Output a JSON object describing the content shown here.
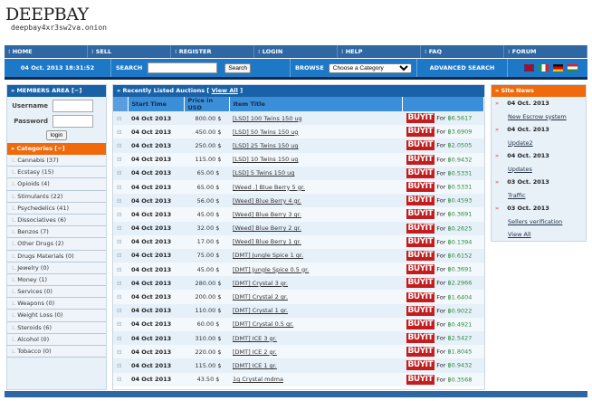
{
  "header": {
    "logo": "DEEPBAY",
    "url": "deepbay4xr3sw2va.onion"
  },
  "nav": [
    "HOME",
    "SELL",
    "REGISTER",
    "LOGIN",
    "HELP",
    "FAQ",
    "FORUM"
  ],
  "toolbar": {
    "datetime": "04 Oct. 2013 18:31:52",
    "search_label": "SEARCH",
    "search_value": "",
    "search_button": "Search",
    "browse_label": "BROWSE",
    "category_select": "Choose a Category",
    "advanced": "ADVANCED SEARCH",
    "flags": [
      "uk",
      "italy",
      "germany",
      "hungary"
    ]
  },
  "members": {
    "title": "» MEMBERS AREA [−]",
    "username": "Username",
    "password": "Password",
    "login": "login"
  },
  "categories": {
    "title": "» Categories [−]",
    "items": [
      "Cannabis (37)",
      "Ecstasy (15)",
      "Opioids (4)",
      "Stimulants (22)",
      "Psychedelics (41)",
      "Dissociatives (6)",
      "Benzos (7)",
      "Other Drugs (2)",
      "Drugs Materials (0)",
      "Jewelry (0)",
      "Money (1)",
      "Services (0)",
      "Weapons (0)",
      "Weight Loss (0)",
      "Steroids (6)",
      "Alcohol (0)",
      "Tobacco (0)"
    ]
  },
  "auctions": {
    "title": "» Recently Listed Auctions [",
    "view_all": "View All",
    "title_end": "]",
    "columns": [
      "",
      "Start Time",
      "Price in USD",
      "Item Title",
      ""
    ],
    "buy_label": "BUYIT",
    "for_label": "For",
    "rows": [
      [
        "04 Oct 2013",
        "800.00 $",
        "[LSD] 100 Twins 150 ug",
        "฿6.5617"
      ],
      [
        "04 Oct 2013",
        "450.00 $",
        "[LSD] 50 Twins 150 ug",
        "฿3.6909"
      ],
      [
        "04 Oct 2013",
        "250.00 $",
        "[LSD] 25 Twins 150 ug",
        "฿2.0505"
      ],
      [
        "04 Oct 2013",
        "115.00 $",
        "[LSD] 10 Twins 150 ug",
        "฿0.9432"
      ],
      [
        "04 Oct 2013",
        "65.00 $",
        "[LSD] 5 Twins 150 ug",
        "฿0.5331"
      ],
      [
        "04 Oct 2013",
        "65.00 $",
        "[Weed .] Blue Berry 5 gr.",
        "฿0.5331"
      ],
      [
        "04 Oct 2013",
        "56.00 $",
        "[Weed] Blue Berry 4 gr.",
        "฿0.4593"
      ],
      [
        "04 Oct 2013",
        "45.00 $",
        "[Weed] Blue Berry 3 gr.",
        "฿0.3691"
      ],
      [
        "04 Oct 2013",
        "32.00 $",
        "[Weed] Blue Berry 2 gr.",
        "฿0.2625"
      ],
      [
        "04 Oct 2013",
        "17.00 $",
        "[Weed] Blue Berry 1 gr.",
        "฿0.1394"
      ],
      [
        "04 Oct 2013",
        "75.00 $",
        "[DMT] Jungle Spice 1 gr.",
        "฿0.6152"
      ],
      [
        "04 Oct 2013",
        "45.00 $",
        "[DMT] Jungle Spice 0.5 gr.",
        "฿0.3691"
      ],
      [
        "04 Oct 2013",
        "280.00 $",
        "[DMT] Crystal 3 gr.",
        "฿2.2966"
      ],
      [
        "04 Oct 2013",
        "200.00 $",
        "[DMT] Crystal 2 gr.",
        "฿1.6404"
      ],
      [
        "04 Oct 2013",
        "110.00 $",
        "[DMT] Crystal 1 gr.",
        "฿0.9022"
      ],
      [
        "04 Oct 2013",
        "60.00 $",
        "[DMT] Crystal 0.5 gr.",
        "฿0.4921"
      ],
      [
        "04 Oct 2013",
        "310.00 $",
        "[DMT] ICE 3 gr.",
        "฿2.5427"
      ],
      [
        "04 Oct 2013",
        "220.00 $",
        "[DMT] ICE 2 gr.",
        "฿1.8045"
      ],
      [
        "04 Oct 2013",
        "115.00 $",
        "[DMT] ICE 1 gr.",
        "฿0.9432"
      ],
      [
        "04 Oct 2013",
        "43.50 $",
        "1g Crystal mdma",
        "฿0.3568"
      ]
    ]
  },
  "news": {
    "title": "» Site News",
    "items": [
      [
        "04 Oct. 2013",
        "New Escrow system"
      ],
      [
        "04 Oct. 2013",
        "Update2"
      ],
      [
        "04 Oct. 2013",
        "Updates"
      ],
      [
        "03 Oct. 2013",
        "Traffic"
      ],
      [
        "03 Oct. 2013",
        "Sellers verification"
      ]
    ],
    "view_all": "View All"
  }
}
